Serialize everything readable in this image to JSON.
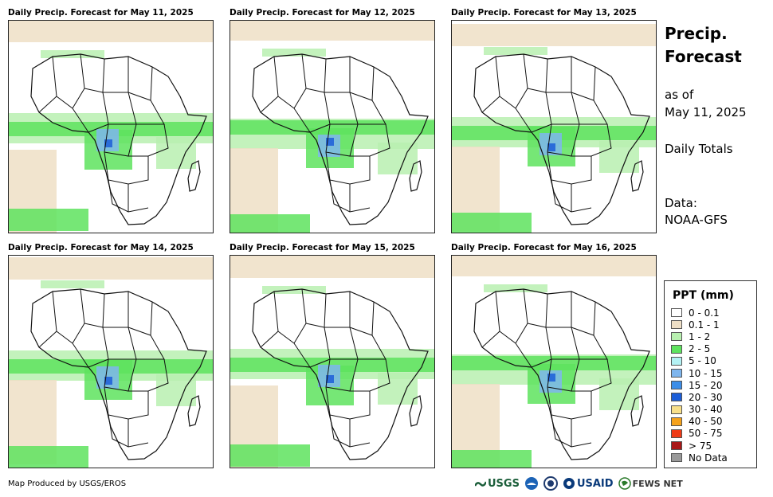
{
  "panels": [
    {
      "title": "Daily Precip. Forecast for May 11, 2025"
    },
    {
      "title": "Daily Precip. Forecast for May 12, 2025"
    },
    {
      "title": "Daily Precip. Forecast for May 13, 2025"
    },
    {
      "title": "Daily Precip. Forecast for May 14, 2025"
    },
    {
      "title": "Daily Precip. Forecast for May 15, 2025"
    },
    {
      "title": "Daily Precip. Forecast for May 16, 2025"
    }
  ],
  "side": {
    "title_line1": "Precip.",
    "title_line2": "Forecast",
    "asof_line1": "as of",
    "asof_line2": "May 11, 2025",
    "totals": "Daily Totals",
    "data_label": "Data:",
    "data_source": "NOAA-GFS"
  },
  "legend": {
    "title": "PPT (mm)",
    "items": [
      {
        "label": "0 - 0.1",
        "color": "#ffffff"
      },
      {
        "label": "0.1 - 1",
        "color": "#eedfc6"
      },
      {
        "label": "1 - 2",
        "color": "#b8f0b0"
      },
      {
        "label": "2 - 5",
        "color": "#5ee35e"
      },
      {
        "label": "5 - 10",
        "color": "#b4f2f4"
      },
      {
        "label": "10 - 15",
        "color": "#7fb6ee"
      },
      {
        "label": "15 - 20",
        "color": "#3d8ee8"
      },
      {
        "label": "20 - 30",
        "color": "#1c5ed8"
      },
      {
        "label": "30 - 40",
        "color": "#f8e08a"
      },
      {
        "label": "40 - 50",
        "color": "#f5a21c"
      },
      {
        "label": "50 - 75",
        "color": "#ef3b17"
      },
      {
        "label": "> 75",
        "color": "#a81818"
      },
      {
        "label": "No Data",
        "color": "#999999"
      }
    ]
  },
  "footer": {
    "credit": "Map Produced by USGS/EROS"
  },
  "logos": {
    "usgs": "USGS",
    "usaid": "USAID",
    "fewsnet": "FEWS NET"
  }
}
